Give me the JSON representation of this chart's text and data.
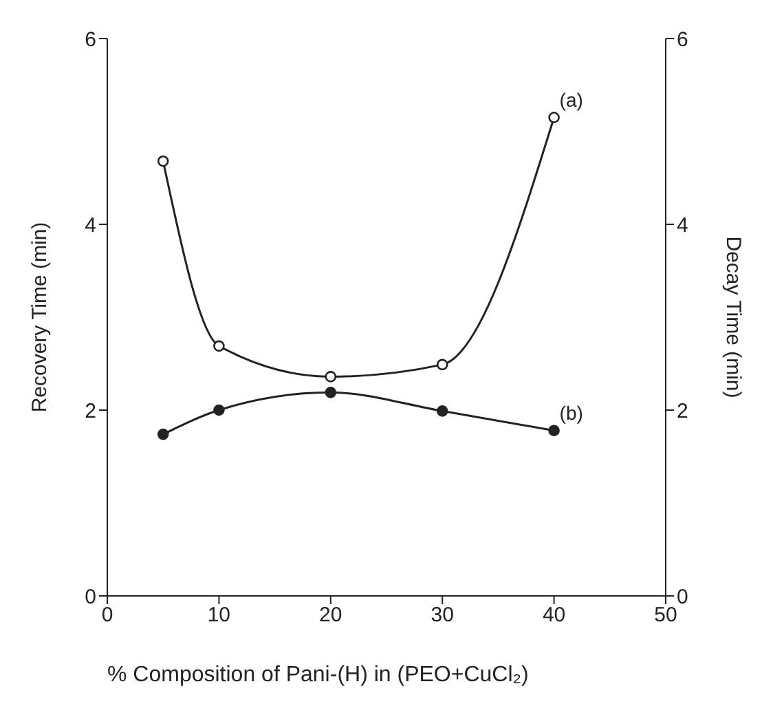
{
  "chart_data": {
    "type": "line",
    "xlabel": "% Composition of Pani-(H) in (PEO+CuCl₂)",
    "ylabel": "Recovery Time (min)",
    "y2label": "Decay Time (min)",
    "x": [
      5,
      10,
      20,
      30,
      40
    ],
    "series": [
      {
        "name": "(a)",
        "color": "#222222",
        "values": [
          4.68,
          2.69,
          2.36,
          2.49,
          5.15
        ]
      },
      {
        "name": "(b)",
        "color": "#222222",
        "values": [
          1.74,
          2.0,
          2.19,
          1.99,
          1.78
        ],
        "axis": "y2"
      }
    ],
    "xlim": [
      0,
      50
    ],
    "xticks": [
      0,
      10,
      20,
      30,
      40,
      50
    ],
    "ylim": [
      0,
      6
    ],
    "yticks": [
      0,
      2,
      4,
      6
    ],
    "y2lim": [
      0,
      6
    ],
    "y2ticks": [
      0,
      2,
      4,
      6
    ],
    "grid": false,
    "legend": false,
    "marker": "circle",
    "line_style": "solid"
  }
}
